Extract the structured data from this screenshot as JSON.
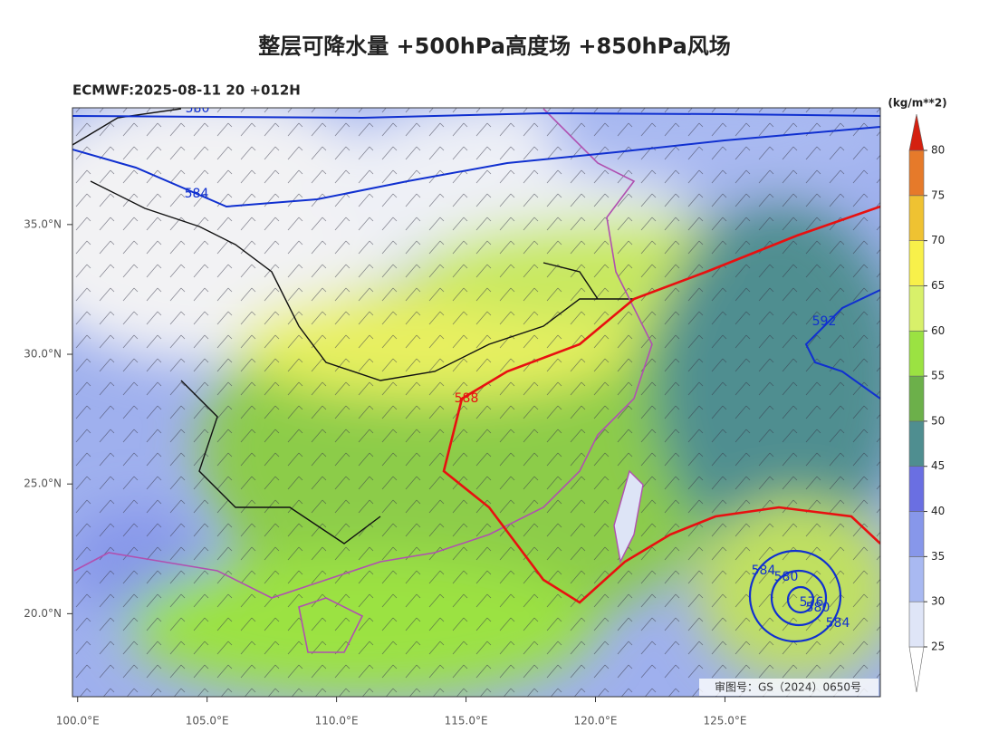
{
  "title": "整层可降水量 +500hPa高度场 +850hPa风场",
  "subtitle": "ECMWF:2025-08-11 20 +012H",
  "map": {
    "lonlim": [
      99.8,
      131.0
    ],
    "latlim": [
      16.8,
      39.5
    ],
    "lon_ticks": [
      {
        "value": 100,
        "label": "100.0°E"
      },
      {
        "value": 105,
        "label": "105.0°E"
      },
      {
        "value": 110,
        "label": "110.0°E"
      },
      {
        "value": 115,
        "label": "115.0°E"
      },
      {
        "value": 120,
        "label": "120.0°E"
      },
      {
        "value": 125,
        "label": "125.0°E"
      }
    ],
    "lat_ticks": [
      {
        "value": 20,
        "label": "20.0°N"
      },
      {
        "value": 25,
        "label": "25.0°N"
      },
      {
        "value": 30,
        "label": "30.0°N"
      },
      {
        "value": 35,
        "label": "35.0°N"
      }
    ],
    "contour_labels": [
      580,
      584,
      588,
      592,
      584,
      580,
      576,
      580,
      584
    ],
    "watermark": "审图号：GS（2024）0650号"
  },
  "colorbar": {
    "unit": "(kg/m**2)",
    "levels": [
      25,
      30,
      35,
      40,
      45,
      50,
      55,
      60,
      65,
      70,
      75,
      80
    ],
    "colors": [
      "#ffffff",
      "#dfe5f7",
      "#a9b9f1",
      "#8797ea",
      "#6a6fe2",
      "#4f8e90",
      "#6cb04a",
      "#9be242",
      "#d8f06a",
      "#f8f04a",
      "#efc232",
      "#e67a2a",
      "#d42010"
    ]
  }
}
